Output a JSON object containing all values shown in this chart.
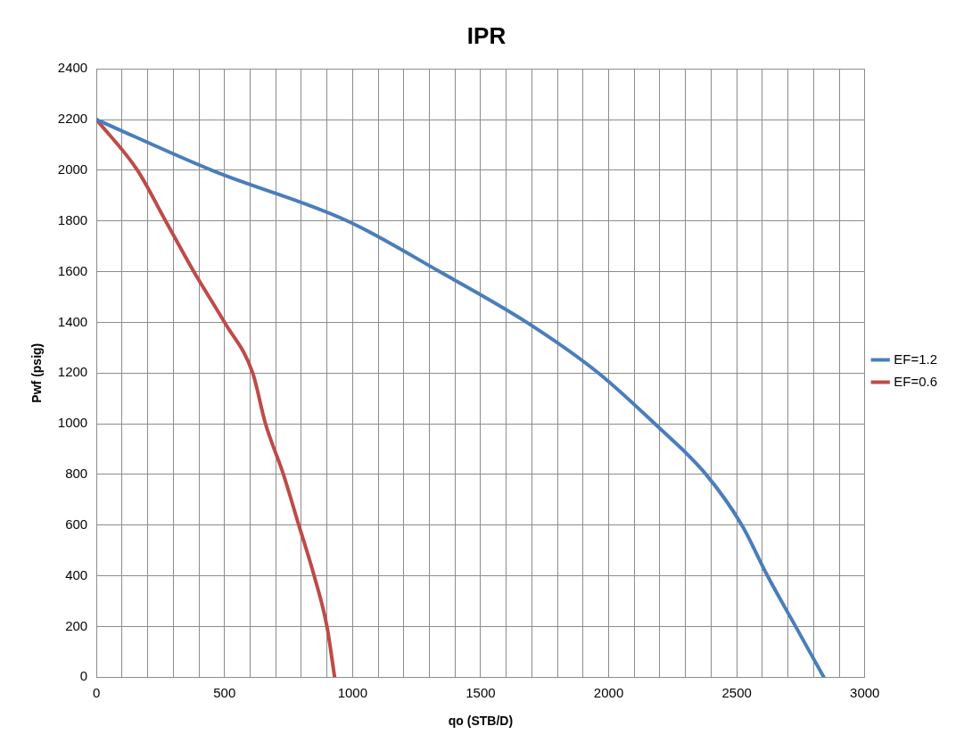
{
  "chart_data": {
    "type": "line",
    "title": "IPR",
    "xlabel": "qo (STB/D)",
    "ylabel": "Pwf (psig)",
    "xlim": [
      0,
      3000
    ],
    "ylim": [
      0,
      2400
    ],
    "xticks": [
      0,
      {
        "value": 100,
        "label": null
      },
      {
        "value": 200,
        "label": null
      },
      {
        "value": 300,
        "label": null
      },
      {
        "value": 400,
        "label": null
      },
      500,
      {
        "value": 600,
        "label": null
      },
      {
        "value": 700,
        "label": null
      },
      {
        "value": 800,
        "label": null
      },
      {
        "value": 900,
        "label": null
      },
      1000,
      {
        "value": 1100,
        "label": null
      },
      {
        "value": 1200,
        "label": null
      },
      {
        "value": 1300,
        "label": null
      },
      {
        "value": 1400,
        "label": null
      },
      1500,
      {
        "value": 1600,
        "label": null
      },
      {
        "value": 1700,
        "label": null
      },
      {
        "value": 1800,
        "label": null
      },
      {
        "value": 1900,
        "label": null
      },
      2000,
      {
        "value": 2100,
        "label": null
      },
      {
        "value": 2200,
        "label": null
      },
      {
        "value": 2300,
        "label": null
      },
      {
        "value": 2400,
        "label": null
      },
      2500,
      {
        "value": 2600,
        "label": null
      },
      {
        "value": 2700,
        "label": null
      },
      {
        "value": 2800,
        "label": null
      },
      {
        "value": 2900,
        "label": null
      },
      3000
    ],
    "yticks": [
      0,
      200,
      400,
      600,
      800,
      1000,
      1200,
      1400,
      1600,
      1800,
      2000,
      2200,
      2400
    ],
    "grid": true,
    "legend": "right",
    "marker": "none",
    "line_style": "solid",
    "series": [
      {
        "name": "EF=1.2",
        "color": "#4a7ebb",
        "x": [
          0,
          450,
          980,
          1340,
          1680,
          1960,
          2180,
          2380,
          2520,
          2620,
          2730,
          2840
        ],
        "values": [
          2200,
          2000,
          1800,
          1600,
          1400,
          1200,
          1000,
          800,
          600,
          400,
          200,
          0
        ]
      },
      {
        "name": "EF=0.6",
        "color": "#be4b48",
        "x": [
          0,
          160,
          270,
          380,
          500,
          610,
          660,
          730,
          790,
          850,
          900,
          930
        ],
        "values": [
          2200,
          2000,
          1800,
          1600,
          1400,
          1200,
          1000,
          800,
          600,
          400,
          200,
          0
        ]
      }
    ]
  }
}
